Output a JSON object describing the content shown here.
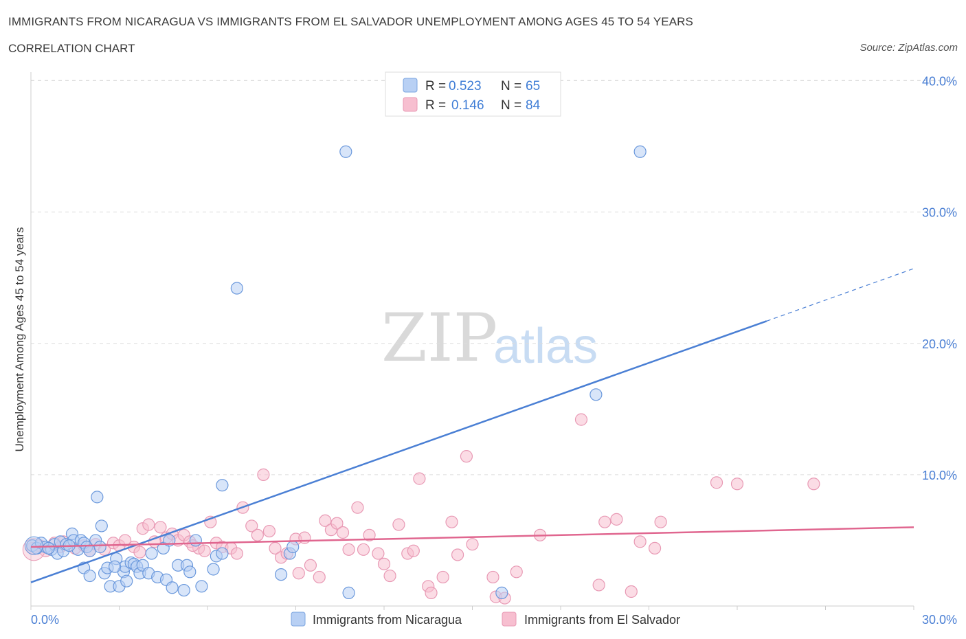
{
  "title": "IMMIGRANTS FROM NICARAGUA VS IMMIGRANTS FROM EL SALVADOR UNEMPLOYMENT AMONG AGES 45 TO 54 YEARS",
  "subtitle": "CORRELATION CHART",
  "source": "Source: ZipAtlas.com",
  "watermark": {
    "zip": "ZIP",
    "atlas": "atlas"
  },
  "colors": {
    "blue": "#4a7fd4",
    "blue_fill": "#b8d0f4",
    "pink": "#e0668f",
    "pink_fill": "#f7bfd0",
    "grid": "#dcdcdc"
  },
  "legend": {
    "row1": {
      "r_label": "R =",
      "r_value": "0.523",
      "n_label": "N =",
      "n_value": "65"
    },
    "row2": {
      "r_label": "R =",
      "r_value": "0.146",
      "n_label": "N =",
      "n_value": "84"
    }
  },
  "chart_data": {
    "type": "scatter",
    "title": "IMMIGRANTS FROM NICARAGUA VS IMMIGRANTS FROM EL SALVADOR UNEMPLOYMENT AMONG AGES 45 TO 54 YEARS",
    "xlabel": "",
    "ylabel": "Unemployment Among Ages 45 to 54 years",
    "xlim": [
      0,
      30
    ],
    "ylim": [
      0,
      40.5
    ],
    "x_tick_labels": [
      "0.0%",
      "30.0%"
    ],
    "y_ticks": [
      10,
      20,
      30,
      40
    ],
    "y_tick_labels": [
      "10.0%",
      "20.0%",
      "30.0%",
      "40.0%"
    ],
    "grid": true,
    "legend_position": "top-center",
    "series": [
      {
        "name": "Immigrants from Nicaragua",
        "color": "#4a7fd4",
        "R": 0.523,
        "N": 65,
        "trend": {
          "x0": 0,
          "y0": 1.8,
          "x1": 25.0,
          "y1": 21.7,
          "dashed_to_x": 30,
          "dashed_to_y": 25.7
        },
        "points": [
          [
            0.05,
            4.6
          ],
          [
            0.2,
            4.4
          ],
          [
            0.35,
            4.8
          ],
          [
            0.5,
            4.5
          ],
          [
            0.7,
            4.3
          ],
          [
            0.8,
            4.7
          ],
          [
            0.9,
            4.0
          ],
          [
            1.0,
            4.9
          ],
          [
            1.1,
            4.2
          ],
          [
            1.2,
            4.7
          ],
          [
            1.4,
            5.5
          ],
          [
            1.45,
            5.0
          ],
          [
            1.6,
            4.3
          ],
          [
            1.7,
            5.0
          ],
          [
            1.8,
            4.8
          ],
          [
            1.9,
            4.5
          ],
          [
            2.0,
            4.2
          ],
          [
            2.2,
            5.0
          ],
          [
            2.25,
            8.3
          ],
          [
            2.35,
            4.5
          ],
          [
            2.4,
            6.1
          ],
          [
            1.8,
            2.9
          ],
          [
            2.0,
            2.3
          ],
          [
            2.5,
            2.5
          ],
          [
            2.6,
            2.9
          ],
          [
            2.7,
            1.5
          ],
          [
            2.9,
            3.6
          ],
          [
            3.0,
            1.5
          ],
          [
            3.15,
            2.6
          ],
          [
            3.2,
            3.0
          ],
          [
            3.25,
            1.9
          ],
          [
            3.4,
            3.3
          ],
          [
            3.5,
            3.2
          ],
          [
            3.6,
            3.0
          ],
          [
            3.7,
            2.5
          ],
          [
            3.8,
            3.1
          ],
          [
            4.0,
            2.5
          ],
          [
            4.1,
            4.0
          ],
          [
            4.3,
            2.2
          ],
          [
            4.5,
            4.4
          ],
          [
            4.6,
            2.0
          ],
          [
            4.7,
            5.0
          ],
          [
            4.8,
            1.4
          ],
          [
            5.0,
            3.1
          ],
          [
            5.2,
            1.2
          ],
          [
            5.3,
            3.1
          ],
          [
            5.4,
            2.6
          ],
          [
            5.6,
            5.0
          ],
          [
            5.8,
            1.5
          ],
          [
            6.2,
            2.8
          ],
          [
            6.3,
            3.8
          ],
          [
            6.5,
            9.2
          ],
          [
            6.5,
            4.0
          ],
          [
            7.0,
            24.2
          ],
          [
            8.5,
            2.4
          ],
          [
            8.8,
            4.0
          ],
          [
            8.9,
            4.5
          ],
          [
            10.7,
            34.6
          ],
          [
            10.8,
            1.0
          ],
          [
            16.0,
            1.0
          ],
          [
            19.2,
            16.1
          ],
          [
            20.7,
            34.6
          ],
          [
            1.3,
            4.6
          ],
          [
            0.6,
            4.4
          ],
          [
            2.85,
            3.0
          ]
        ]
      },
      {
        "name": "Immigrants from El Salvador",
        "color": "#e0668f",
        "R": 0.146,
        "N": 84,
        "trend": {
          "x0": 0,
          "y0": 4.5,
          "x1": 30,
          "y1": 6.0
        },
        "points": [
          [
            0.05,
            4.4
          ],
          [
            0.3,
            4.6
          ],
          [
            0.5,
            4.2
          ],
          [
            0.8,
            4.8
          ],
          [
            1.0,
            4.5
          ],
          [
            1.1,
            4.9
          ],
          [
            1.5,
            4.4
          ],
          [
            1.8,
            4.6
          ],
          [
            2.0,
            4.2
          ],
          [
            2.2,
            4.7
          ],
          [
            2.5,
            4.3
          ],
          [
            2.8,
            4.8
          ],
          [
            3.0,
            4.6
          ],
          [
            3.2,
            5.0
          ],
          [
            3.5,
            4.5
          ],
          [
            3.7,
            4.1
          ],
          [
            3.8,
            5.9
          ],
          [
            4.0,
            6.2
          ],
          [
            4.2,
            4.9
          ],
          [
            4.4,
            6.0
          ],
          [
            4.6,
            5.2
          ],
          [
            4.8,
            5.5
          ],
          [
            5.0,
            5.0
          ],
          [
            5.2,
            5.4
          ],
          [
            5.4,
            4.9
          ],
          [
            5.7,
            4.4
          ],
          [
            5.9,
            4.2
          ],
          [
            6.1,
            6.4
          ],
          [
            6.3,
            4.8
          ],
          [
            6.5,
            4.5
          ],
          [
            6.8,
            4.4
          ],
          [
            7.0,
            4.0
          ],
          [
            7.2,
            7.5
          ],
          [
            7.5,
            6.1
          ],
          [
            7.7,
            5.4
          ],
          [
            7.9,
            10.0
          ],
          [
            8.1,
            5.7
          ],
          [
            8.3,
            4.4
          ],
          [
            8.5,
            3.7
          ],
          [
            8.7,
            4.0
          ],
          [
            9.0,
            5.1
          ],
          [
            9.1,
            2.5
          ],
          [
            9.3,
            5.2
          ],
          [
            9.5,
            3.1
          ],
          [
            9.8,
            2.2
          ],
          [
            10.0,
            6.5
          ],
          [
            10.2,
            5.8
          ],
          [
            10.4,
            6.3
          ],
          [
            10.6,
            5.6
          ],
          [
            10.8,
            4.3
          ],
          [
            11.1,
            7.5
          ],
          [
            11.3,
            4.3
          ],
          [
            11.5,
            5.4
          ],
          [
            11.8,
            4.0
          ],
          [
            12.0,
            3.2
          ],
          [
            12.2,
            2.3
          ],
          [
            12.5,
            6.2
          ],
          [
            12.8,
            4.0
          ],
          [
            13.0,
            4.2
          ],
          [
            13.2,
            9.7
          ],
          [
            13.5,
            1.5
          ],
          [
            13.6,
            1.0
          ],
          [
            14.0,
            2.2
          ],
          [
            14.3,
            6.4
          ],
          [
            14.5,
            3.9
          ],
          [
            14.8,
            11.4
          ],
          [
            15.0,
            4.7
          ],
          [
            15.7,
            2.2
          ],
          [
            15.8,
            0.7
          ],
          [
            16.1,
            0.6
          ],
          [
            16.5,
            2.6
          ],
          [
            17.3,
            5.4
          ],
          [
            18.7,
            14.2
          ],
          [
            19.3,
            1.6
          ],
          [
            19.5,
            6.4
          ],
          [
            19.9,
            6.6
          ],
          [
            20.4,
            1.1
          ],
          [
            20.7,
            4.9
          ],
          [
            21.2,
            4.4
          ],
          [
            21.4,
            6.4
          ],
          [
            23.3,
            9.4
          ],
          [
            24.0,
            9.3
          ],
          [
            26.6,
            9.3
          ],
          [
            5.5,
            4.6
          ]
        ]
      }
    ]
  },
  "bottom_legend": {
    "nicaragua": "Immigrants from Nicaragua",
    "el_salvador": "Immigrants from El Salvador"
  }
}
